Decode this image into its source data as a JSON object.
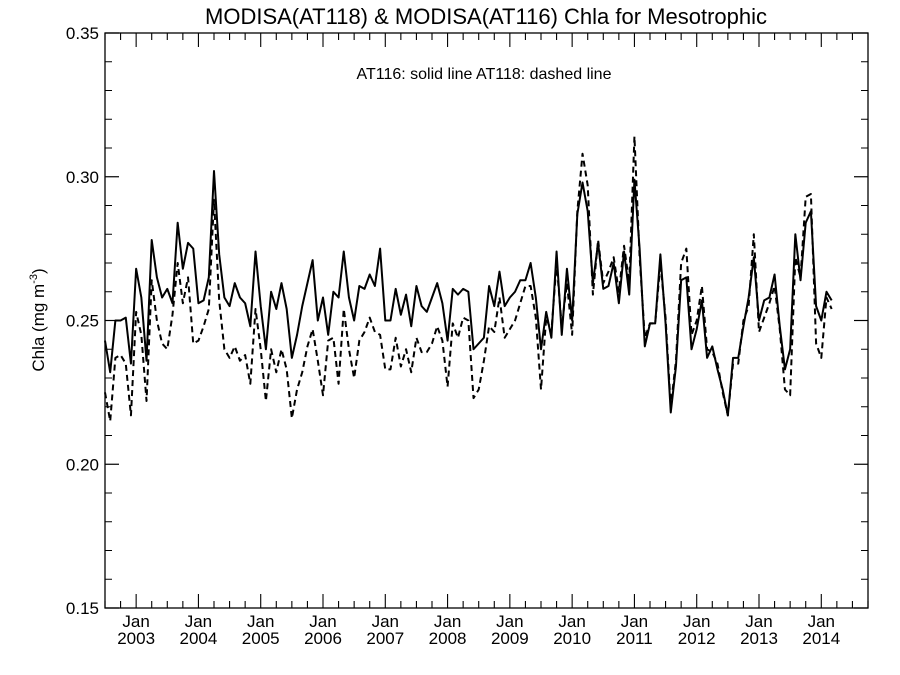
{
  "chart_data": {
    "type": "line",
    "title": "MODISA(AT118) & MODISA(AT116)  Chla for Mesotrophic",
    "annotation": "AT116: solid line   AT118: dashed line",
    "ylabel": "Chla (mg m",
    "ylabel_sup": "-3",
    "ylabel_close": ")",
    "ylim": [
      0.15,
      0.35
    ],
    "yticks": [
      {
        "value": 0.15,
        "label": "0.15"
      },
      {
        "value": 0.2,
        "label": "0.20"
      },
      {
        "value": 0.25,
        "label": "0.25"
      },
      {
        "value": 0.3,
        "label": "0.30"
      },
      {
        "value": 0.35,
        "label": "0.35"
      }
    ],
    "xlim": [
      "2002-07-01",
      "2014-10-01"
    ],
    "xticks": [
      {
        "date": "2003-01-01",
        "month": "Jan",
        "year": "2003"
      },
      {
        "date": "2004-01-01",
        "month": "Jan",
        "year": "2004"
      },
      {
        "date": "2005-01-01",
        "month": "Jan",
        "year": "2005"
      },
      {
        "date": "2006-01-01",
        "month": "Jan",
        "year": "2006"
      },
      {
        "date": "2007-01-01",
        "month": "Jan",
        "year": "2007"
      },
      {
        "date": "2008-01-01",
        "month": "Jan",
        "year": "2008"
      },
      {
        "date": "2009-01-01",
        "month": "Jan",
        "year": "2009"
      },
      {
        "date": "2010-01-01",
        "month": "Jan",
        "year": "2010"
      },
      {
        "date": "2011-01-01",
        "month": "Jan",
        "year": "2011"
      },
      {
        "date": "2012-01-01",
        "month": "Jan",
        "year": "2012"
      },
      {
        "date": "2013-01-01",
        "month": "Jan",
        "year": "2013"
      },
      {
        "date": "2014-01-01",
        "month": "Jan",
        "year": "2014"
      }
    ],
    "x_start": "2002-07",
    "x_step": "monthly",
    "series": [
      {
        "style": "solid",
        "color": "#000000",
        "values": [
          0.243,
          0.232,
          0.25,
          0.25,
          0.251,
          0.235,
          0.268,
          0.258,
          0.236,
          0.278,
          0.265,
          0.258,
          0.261,
          0.256,
          0.284,
          0.268,
          0.277,
          0.275,
          0.256,
          0.257,
          0.265,
          0.302,
          0.273,
          0.258,
          0.255,
          0.263,
          0.258,
          0.256,
          0.248,
          0.274,
          0.255,
          0.24,
          0.26,
          0.254,
          0.263,
          0.254,
          0.237,
          0.245,
          0.255,
          0.263,
          0.271,
          0.25,
          0.258,
          0.245,
          0.26,
          0.258,
          0.274,
          0.258,
          0.25,
          0.262,
          0.261,
          0.266,
          0.262,
          0.275,
          0.25,
          0.25,
          0.261,
          0.252,
          0.259,
          0.248,
          0.262,
          0.255,
          0.253,
          0.258,
          0.263,
          0.256,
          0.243,
          0.261,
          0.259,
          0.261,
          0.26,
          0.24,
          0.242,
          0.244,
          0.262,
          0.255,
          0.267,
          0.255,
          0.258,
          0.26,
          0.264,
          0.264,
          0.27,
          0.258,
          0.24,
          0.253,
          0.244,
          0.274,
          0.245,
          0.268,
          0.25,
          0.287,
          0.298,
          0.288,
          0.263,
          0.277,
          0.261,
          0.262,
          0.27,
          0.256,
          0.274,
          0.259,
          0.299,
          0.275,
          0.241,
          0.249,
          0.249,
          0.273,
          0.249,
          0.218,
          0.234,
          0.264,
          0.265,
          0.24,
          0.247,
          0.257,
          0.237,
          0.241,
          0.233,
          0.226,
          0.217,
          0.237,
          0.237,
          0.248,
          0.258,
          0.272,
          0.25,
          0.257,
          0.258,
          0.266,
          0.248,
          0.233,
          0.24,
          0.28,
          0.264,
          0.284,
          0.288,
          0.255,
          0.25,
          0.26,
          0.257
        ]
      },
      {
        "style": "dashed",
        "color": "#000000",
        "values": [
          0.225,
          0.215,
          0.237,
          0.238,
          0.235,
          0.217,
          0.253,
          0.245,
          0.222,
          0.264,
          0.25,
          0.242,
          0.24,
          0.252,
          0.27,
          0.256,
          0.265,
          0.242,
          0.243,
          0.248,
          0.254,
          0.292,
          0.257,
          0.24,
          0.237,
          0.241,
          0.236,
          0.238,
          0.228,
          0.254,
          0.24,
          0.222,
          0.24,
          0.232,
          0.24,
          0.233,
          0.216,
          0.226,
          0.232,
          0.241,
          0.247,
          0.236,
          0.224,
          0.243,
          0.244,
          0.228,
          0.254,
          0.24,
          0.23,
          0.243,
          0.246,
          0.251,
          0.246,
          0.245,
          0.233,
          0.233,
          0.244,
          0.234,
          0.24,
          0.232,
          0.244,
          0.239,
          0.239,
          0.242,
          0.248,
          0.243,
          0.227,
          0.249,
          0.244,
          0.251,
          0.25,
          0.223,
          0.226,
          0.236,
          0.248,
          0.246,
          0.258,
          0.244,
          0.247,
          0.25,
          0.256,
          0.262,
          0.262,
          0.251,
          0.226,
          0.251,
          0.246,
          0.27,
          0.248,
          0.263,
          0.245,
          0.288,
          0.308,
          0.297,
          0.259,
          0.278,
          0.263,
          0.267,
          0.272,
          0.26,
          0.276,
          0.263,
          0.314,
          0.272,
          0.244,
          0.249,
          0.249,
          0.27,
          0.251,
          0.22,
          0.236,
          0.27,
          0.275,
          0.245,
          0.25,
          0.262,
          0.24,
          0.239,
          0.235,
          0.225,
          0.217,
          0.235,
          0.235,
          0.25,
          0.255,
          0.28,
          0.246,
          0.251,
          0.256,
          0.262,
          0.247,
          0.226,
          0.224,
          0.272,
          0.265,
          0.293,
          0.294,
          0.242,
          0.237,
          0.258,
          0.254
        ]
      }
    ]
  }
}
